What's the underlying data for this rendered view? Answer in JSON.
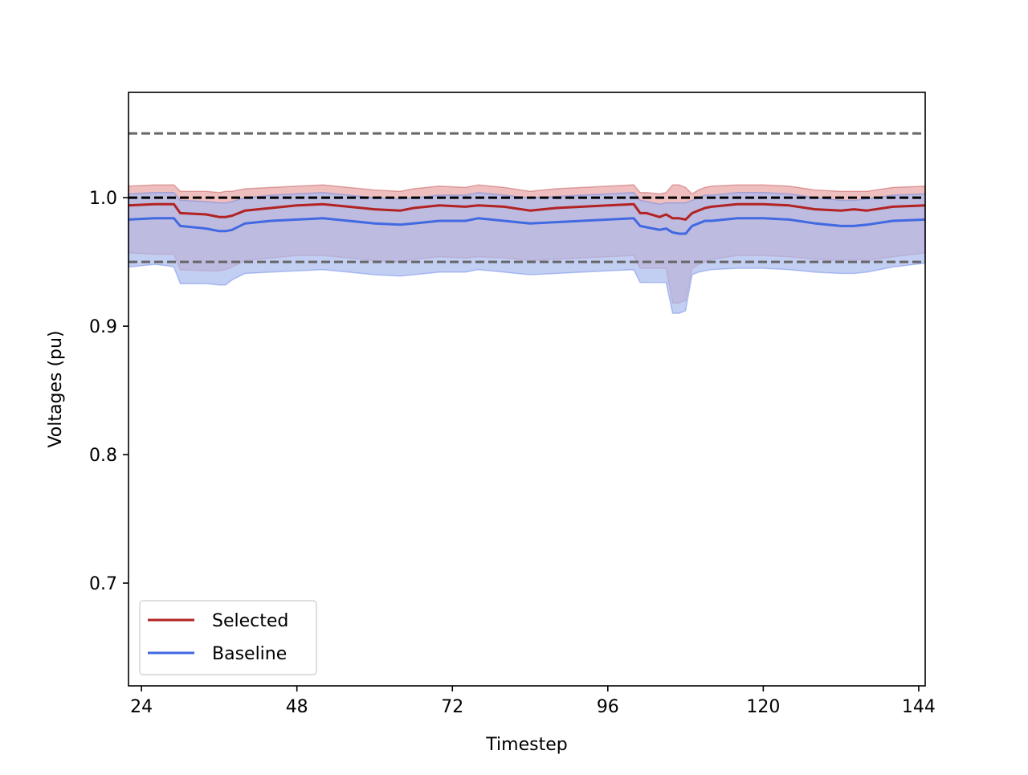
{
  "chart_data": {
    "type": "line",
    "title": "",
    "xlabel": "Timestep",
    "ylabel": "Voltages (pu)",
    "xlim": [
      22,
      145
    ],
    "ylim": [
      0.62,
      1.082
    ],
    "xticks": [
      24,
      48,
      72,
      96,
      120,
      144
    ],
    "xtick_labels": [
      "24",
      "48",
      "72",
      "96",
      "120",
      "144"
    ],
    "yticks": [
      0.7,
      0.8,
      0.9,
      1.0
    ],
    "ytick_labels": [
      "0.7",
      "0.8",
      "0.9",
      "1.0"
    ],
    "grid": false,
    "legend": {
      "placement": "lower-left",
      "entries": [
        "Selected",
        "Baseline"
      ]
    },
    "reference_lines": [
      {
        "y": 1.05,
        "style": "dashed",
        "color": "#666666"
      },
      {
        "y": 1.0,
        "style": "dashed",
        "color": "#000000"
      },
      {
        "y": 0.95,
        "style": "dashed",
        "color": "#666666"
      }
    ],
    "series": [
      {
        "name": "Selected",
        "color": "#b22222",
        "band_color": "#e8a4a4",
        "x": [
          22,
          26,
          28,
          29,
          30,
          34,
          36,
          37,
          38,
          40,
          44,
          48,
          52,
          56,
          60,
          64,
          66,
          70,
          74,
          76,
          80,
          84,
          88,
          92,
          96,
          100,
          101,
          102,
          104,
          105,
          106,
          107,
          108,
          109,
          110,
          111,
          112,
          116,
          120,
          124,
          128,
          132,
          134,
          136,
          140,
          145
        ],
        "mean": [
          0.994,
          0.995,
          0.995,
          0.995,
          0.988,
          0.987,
          0.985,
          0.985,
          0.986,
          0.99,
          0.992,
          0.994,
          0.995,
          0.993,
          0.991,
          0.99,
          0.992,
          0.994,
          0.993,
          0.994,
          0.993,
          0.99,
          0.992,
          0.993,
          0.994,
          0.995,
          0.988,
          0.988,
          0.985,
          0.987,
          0.984,
          0.984,
          0.983,
          0.988,
          0.99,
          0.992,
          0.993,
          0.995,
          0.995,
          0.994,
          0.991,
          0.99,
          0.991,
          0.99,
          0.993,
          0.994
        ],
        "upper": [
          1.009,
          1.01,
          1.01,
          1.01,
          1.005,
          1.005,
          1.004,
          1.005,
          1.005,
          1.007,
          1.008,
          1.009,
          1.01,
          1.008,
          1.006,
          1.005,
          1.007,
          1.009,
          1.008,
          1.01,
          1.008,
          1.005,
          1.007,
          1.008,
          1.009,
          1.01,
          1.004,
          1.004,
          1.003,
          1.004,
          1.01,
          1.01,
          1.008,
          1.003,
          1.006,
          1.008,
          1.009,
          1.01,
          1.01,
          1.009,
          1.006,
          1.005,
          1.005,
          1.005,
          1.008,
          1.009
        ],
        "lower": [
          0.957,
          0.956,
          0.956,
          0.956,
          0.944,
          0.943,
          0.943,
          0.944,
          0.946,
          0.951,
          0.953,
          0.955,
          0.955,
          0.953,
          0.951,
          0.95,
          0.952,
          0.954,
          0.953,
          0.954,
          0.953,
          0.951,
          0.952,
          0.953,
          0.954,
          0.955,
          0.945,
          0.945,
          0.945,
          0.945,
          0.918,
          0.918,
          0.92,
          0.945,
          0.948,
          0.95,
          0.952,
          0.955,
          0.955,
          0.954,
          0.952,
          0.951,
          0.952,
          0.951,
          0.954,
          0.957
        ]
      },
      {
        "name": "Baseline",
        "color": "#4169e1",
        "band_color": "#a9b9ee",
        "x": [
          22,
          26,
          28,
          29,
          30,
          34,
          36,
          37,
          38,
          40,
          44,
          48,
          52,
          56,
          60,
          64,
          66,
          70,
          74,
          76,
          80,
          84,
          88,
          92,
          96,
          100,
          101,
          102,
          104,
          105,
          106,
          107,
          108,
          109,
          110,
          111,
          112,
          116,
          120,
          124,
          128,
          132,
          134,
          136,
          140,
          145
        ],
        "mean": [
          0.983,
          0.984,
          0.984,
          0.984,
          0.978,
          0.976,
          0.974,
          0.974,
          0.975,
          0.98,
          0.982,
          0.983,
          0.984,
          0.982,
          0.98,
          0.979,
          0.98,
          0.982,
          0.982,
          0.984,
          0.982,
          0.98,
          0.981,
          0.982,
          0.983,
          0.984,
          0.978,
          0.977,
          0.975,
          0.976,
          0.973,
          0.972,
          0.972,
          0.978,
          0.98,
          0.982,
          0.982,
          0.984,
          0.984,
          0.983,
          0.98,
          0.978,
          0.978,
          0.979,
          0.982,
          0.983
        ],
        "upper": [
          1.003,
          1.004,
          1.004,
          1.004,
          0.998,
          0.997,
          0.996,
          0.996,
          0.997,
          1.0,
          1.002,
          1.003,
          1.004,
          1.002,
          1.0,
          0.999,
          1.0,
          1.002,
          1.002,
          1.004,
          1.002,
          1.0,
          1.001,
          1.002,
          1.003,
          1.004,
          0.998,
          0.997,
          0.995,
          0.996,
          0.996,
          0.996,
          0.996,
          0.998,
          1.0,
          1.002,
          1.002,
          1.004,
          1.004,
          1.003,
          1.0,
          0.998,
          0.998,
          0.999,
          1.002,
          1.003
        ],
        "lower": [
          0.946,
          0.948,
          0.947,
          0.946,
          0.933,
          0.933,
          0.932,
          0.932,
          0.936,
          0.941,
          0.942,
          0.943,
          0.944,
          0.942,
          0.94,
          0.939,
          0.94,
          0.942,
          0.942,
          0.944,
          0.942,
          0.94,
          0.941,
          0.942,
          0.943,
          0.944,
          0.934,
          0.934,
          0.934,
          0.934,
          0.91,
          0.91,
          0.912,
          0.94,
          0.942,
          0.943,
          0.944,
          0.945,
          0.945,
          0.944,
          0.942,
          0.941,
          0.941,
          0.942,
          0.946,
          0.949
        ]
      }
    ]
  }
}
